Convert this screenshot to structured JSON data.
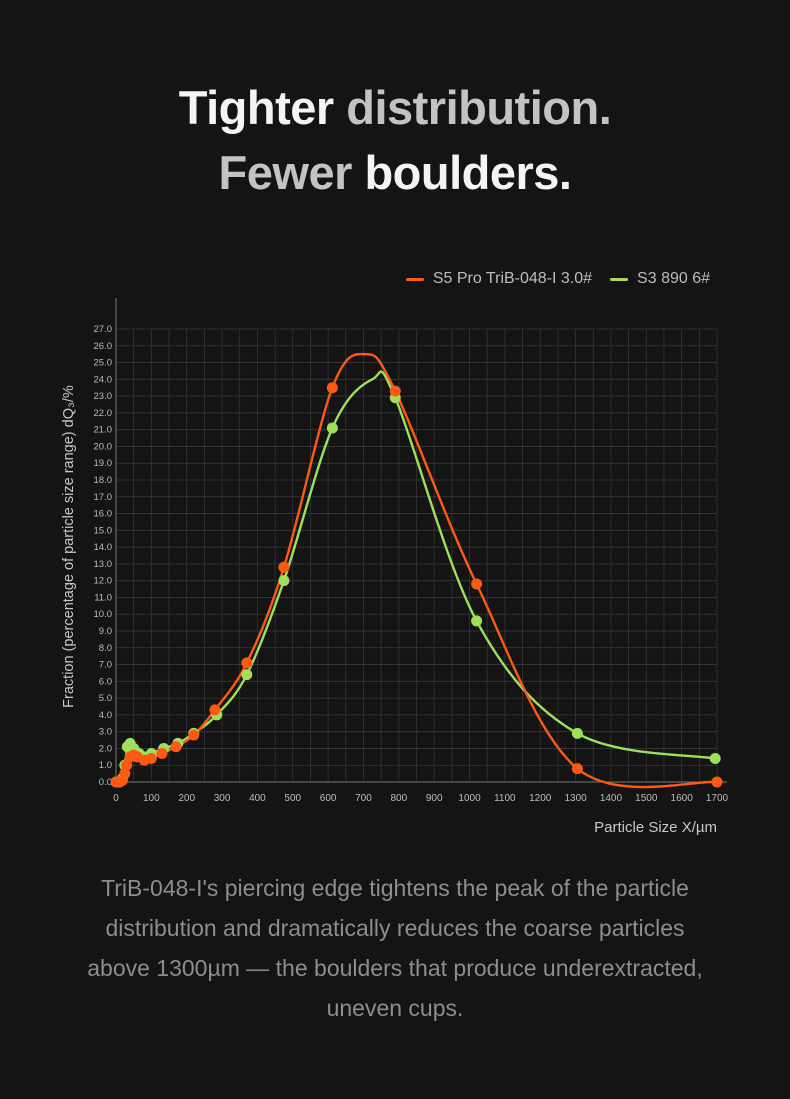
{
  "headline": {
    "line1_a": "Tighter ",
    "line1_b": "distribution.",
    "line2_a": "Fewer ",
    "line2_b": "boulders."
  },
  "body_text": "TriB-048-I's piercing edge tightens the peak of the particle distribution and dramatically reduces the coarse particles above 1300µm — the boulders that produce underextracted, uneven cups.",
  "chart_data": {
    "type": "line",
    "xlabel": "Particle Size X/µm",
    "ylabel": "Fraction (percentage of particle size range) dQ₃/%",
    "xlim": [
      0,
      1700
    ],
    "ylim": [
      0,
      27
    ],
    "x_ticks": [
      0,
      100,
      200,
      300,
      400,
      500,
      600,
      700,
      800,
      900,
      1000,
      1100,
      1200,
      1300,
      1400,
      1500,
      1600,
      1700
    ],
    "y_ticks": [
      "0.0",
      "1.0",
      "2.0",
      "3.0",
      "4.0",
      "5.0",
      "6.0",
      "7.0",
      "8.0",
      "9.0",
      "10.0",
      "11.0",
      "12.0",
      "13.0",
      "14.0",
      "15.0",
      "16.0",
      "17.0",
      "18.0",
      "19.0",
      "20.0",
      "21.0",
      "22.0",
      "23.0",
      "24.0",
      "25.0",
      "26.0",
      "27.0"
    ],
    "grid": true,
    "legend_position": "top-right",
    "series": [
      {
        "name": "S5 Pro TriB-048-I 3.0#",
        "color": "#ff5a14",
        "points": [
          [
            0,
            0
          ],
          [
            10,
            0
          ],
          [
            18,
            0.1
          ],
          [
            25,
            0.5
          ],
          [
            30,
            1
          ],
          [
            40,
            1.5
          ],
          [
            50,
            1.6
          ],
          [
            60,
            1.5
          ],
          [
            80,
            1.3
          ],
          [
            100,
            1.4
          ],
          [
            130,
            1.7
          ],
          [
            170,
            2.1
          ],
          [
            220,
            2.8
          ],
          [
            280,
            4.3
          ],
          [
            370,
            7.1
          ],
          [
            475,
            12.8
          ],
          [
            612,
            23.5
          ],
          [
            790,
            23.3
          ],
          [
            1020,
            11.8
          ],
          [
            1305,
            0.8
          ],
          [
            1700,
            0
          ]
        ],
        "peak": [
          705,
          25.5
        ]
      },
      {
        "name": "S3 890 6#",
        "color": "#9ee05c",
        "points": [
          [
            0,
            0
          ],
          [
            10,
            0
          ],
          [
            18,
            0.2
          ],
          [
            25,
            1
          ],
          [
            32,
            2.1
          ],
          [
            40,
            2.3
          ],
          [
            50,
            2
          ],
          [
            65,
            1.7
          ],
          [
            80,
            1.5
          ],
          [
            100,
            1.7
          ],
          [
            135,
            2
          ],
          [
            175,
            2.3
          ],
          [
            220,
            2.9
          ],
          [
            285,
            4
          ],
          [
            370,
            6.4
          ],
          [
            475,
            12
          ],
          [
            612,
            21.1
          ],
          [
            790,
            22.9
          ],
          [
            1020,
            9.6
          ],
          [
            1305,
            2.9
          ],
          [
            1695,
            1.4
          ]
        ],
        "peak": [
          725,
          24
        ]
      }
    ]
  }
}
